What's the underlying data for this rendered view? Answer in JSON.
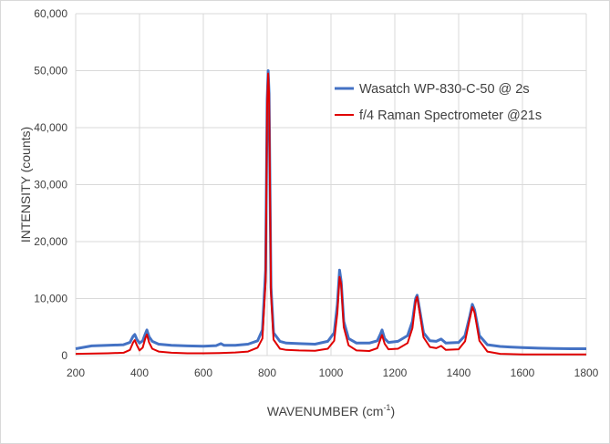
{
  "chart_data": {
    "type": "line",
    "title": "",
    "xlabel_main": "WAVENUMBER (cm",
    "xlabel_sup": "-1",
    "xlabel_end": ")",
    "ylabel": "INTENSITY (counts)",
    "xlim": [
      200,
      1800
    ],
    "ylim": [
      0,
      60000
    ],
    "x_ticks": [
      "200",
      "400",
      "600",
      "800",
      "1000",
      "1200",
      "1400",
      "1600",
      "1800"
    ],
    "y_ticks": [
      "0",
      "10,000",
      "20,000",
      "30,000",
      "40,000",
      "50,000",
      "60,000"
    ],
    "grid": true,
    "legend_position": "top-right",
    "series": [
      {
        "name": "Wasatch WP-830-C-50 @ 2s",
        "color": "#4472c4",
        "points": [
          [
            200,
            1200
          ],
          [
            250,
            1700
          ],
          [
            300,
            1800
          ],
          [
            350,
            1900
          ],
          [
            370,
            2300
          ],
          [
            380,
            3400
          ],
          [
            385,
            3700
          ],
          [
            392,
            2800
          ],
          [
            400,
            2200
          ],
          [
            410,
            2600
          ],
          [
            418,
            3800
          ],
          [
            423,
            4500
          ],
          [
            430,
            3300
          ],
          [
            440,
            2500
          ],
          [
            460,
            2000
          ],
          [
            500,
            1800
          ],
          [
            550,
            1700
          ],
          [
            600,
            1650
          ],
          [
            640,
            1750
          ],
          [
            655,
            2100
          ],
          [
            665,
            1800
          ],
          [
            700,
            1800
          ],
          [
            740,
            2000
          ],
          [
            770,
            2600
          ],
          [
            785,
            4500
          ],
          [
            795,
            15000
          ],
          [
            800,
            45000
          ],
          [
            803,
            50000
          ],
          [
            806,
            46000
          ],
          [
            812,
            12000
          ],
          [
            820,
            4000
          ],
          [
            840,
            2500
          ],
          [
            860,
            2200
          ],
          [
            900,
            2100
          ],
          [
            950,
            2000
          ],
          [
            990,
            2500
          ],
          [
            1010,
            4000
          ],
          [
            1020,
            9000
          ],
          [
            1027,
            15000
          ],
          [
            1032,
            13000
          ],
          [
            1040,
            6000
          ],
          [
            1055,
            3000
          ],
          [
            1080,
            2200
          ],
          [
            1120,
            2200
          ],
          [
            1145,
            2600
          ],
          [
            1155,
            3800
          ],
          [
            1160,
            4500
          ],
          [
            1168,
            3000
          ],
          [
            1180,
            2300
          ],
          [
            1210,
            2500
          ],
          [
            1240,
            3500
          ],
          [
            1255,
            6000
          ],
          [
            1265,
            10000
          ],
          [
            1270,
            10600
          ],
          [
            1278,
            8000
          ],
          [
            1290,
            4000
          ],
          [
            1310,
            2600
          ],
          [
            1330,
            2500
          ],
          [
            1345,
            2900
          ],
          [
            1360,
            2200
          ],
          [
            1400,
            2300
          ],
          [
            1420,
            3500
          ],
          [
            1435,
            7000
          ],
          [
            1443,
            9000
          ],
          [
            1450,
            8000
          ],
          [
            1465,
            3500
          ],
          [
            1490,
            1900
          ],
          [
            1530,
            1600
          ],
          [
            1560,
            1500
          ],
          [
            1600,
            1400
          ],
          [
            1650,
            1300
          ],
          [
            1700,
            1250
          ],
          [
            1750,
            1200
          ],
          [
            1800,
            1200
          ]
        ]
      },
      {
        "name": "f/4 Raman Spectrometer @21s",
        "color": "#e00000",
        "points": [
          [
            200,
            300
          ],
          [
            300,
            400
          ],
          [
            350,
            500
          ],
          [
            370,
            1000
          ],
          [
            380,
            2300
          ],
          [
            385,
            2700
          ],
          [
            392,
            1800
          ],
          [
            400,
            900
          ],
          [
            410,
            1400
          ],
          [
            418,
            3000
          ],
          [
            423,
            3700
          ],
          [
            430,
            2300
          ],
          [
            440,
            1200
          ],
          [
            460,
            700
          ],
          [
            500,
            500
          ],
          [
            550,
            400
          ],
          [
            600,
            400
          ],
          [
            650,
            450
          ],
          [
            700,
            550
          ],
          [
            740,
            700
          ],
          [
            770,
            1400
          ],
          [
            785,
            3000
          ],
          [
            795,
            13000
          ],
          [
            800,
            44000
          ],
          [
            803,
            49500
          ],
          [
            806,
            46000
          ],
          [
            812,
            11000
          ],
          [
            820,
            2800
          ],
          [
            840,
            1200
          ],
          [
            860,
            1000
          ],
          [
            900,
            900
          ],
          [
            950,
            850
          ],
          [
            990,
            1200
          ],
          [
            1010,
            2600
          ],
          [
            1020,
            7500
          ],
          [
            1027,
            13800
          ],
          [
            1032,
            12500
          ],
          [
            1040,
            5000
          ],
          [
            1055,
            1800
          ],
          [
            1080,
            900
          ],
          [
            1120,
            800
          ],
          [
            1145,
            1300
          ],
          [
            1155,
            2900
          ],
          [
            1160,
            3600
          ],
          [
            1168,
            2100
          ],
          [
            1180,
            1100
          ],
          [
            1210,
            1200
          ],
          [
            1240,
            2200
          ],
          [
            1255,
            4800
          ],
          [
            1265,
            9500
          ],
          [
            1270,
            10300
          ],
          [
            1278,
            7500
          ],
          [
            1290,
            3200
          ],
          [
            1310,
            1500
          ],
          [
            1330,
            1300
          ],
          [
            1345,
            1700
          ],
          [
            1360,
            1000
          ],
          [
            1400,
            1100
          ],
          [
            1420,
            2500
          ],
          [
            1435,
            6500
          ],
          [
            1443,
            8500
          ],
          [
            1450,
            7500
          ],
          [
            1465,
            2600
          ],
          [
            1490,
            700
          ],
          [
            1530,
            300
          ],
          [
            1560,
            250
          ],
          [
            1600,
            200
          ],
          [
            1700,
            200
          ],
          [
            1800,
            200
          ]
        ]
      }
    ]
  }
}
